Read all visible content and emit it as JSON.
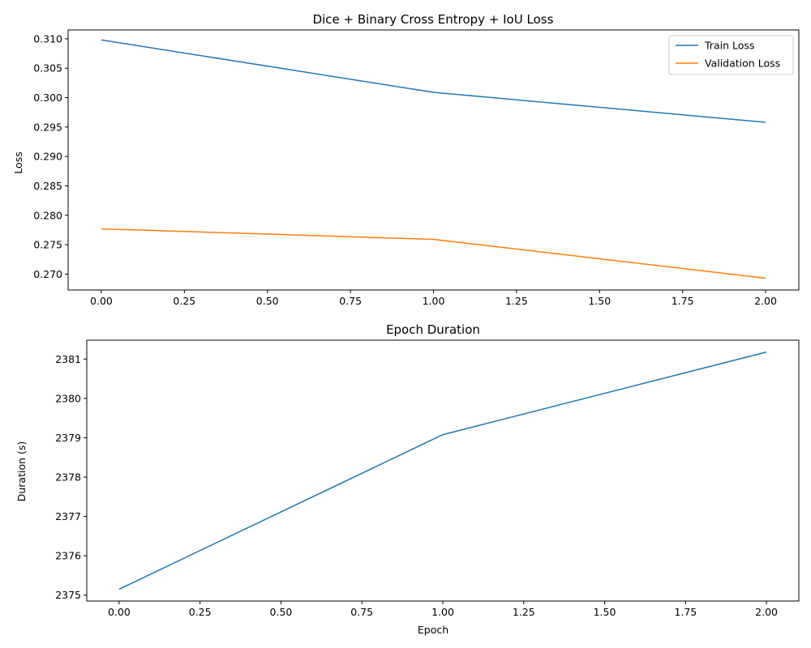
{
  "chart_data": [
    {
      "type": "line",
      "title": "Dice + Binary Cross Entropy + IoU Loss",
      "xlabel": "",
      "ylabel": "Loss",
      "x": [
        0,
        1,
        2
      ],
      "series": [
        {
          "name": "Train Loss",
          "color": "#1f77b4",
          "values": [
            0.3098,
            0.3009,
            0.2958
          ]
        },
        {
          "name": "Validation Loss",
          "color": "#ff7f0e",
          "values": [
            0.2777,
            0.2759,
            0.2693
          ]
        }
      ],
      "xlim": [
        -0.1,
        2.1
      ],
      "ylim": [
        0.2673,
        0.3115
      ],
      "xticks": [
        0.0,
        0.25,
        0.5,
        0.75,
        1.0,
        1.25,
        1.5,
        1.75,
        2.0
      ],
      "xtick_labels": [
        "0.00",
        "0.25",
        "0.50",
        "0.75",
        "1.00",
        "1.25",
        "1.50",
        "1.75",
        "2.00"
      ],
      "yticks": [
        0.27,
        0.275,
        0.28,
        0.285,
        0.29,
        0.295,
        0.3,
        0.305,
        0.31
      ],
      "ytick_labels": [
        "0.270",
        "0.275",
        "0.280",
        "0.285",
        "0.290",
        "0.295",
        "0.300",
        "0.305",
        "0.310"
      ],
      "legend": "top-right",
      "grid": false
    },
    {
      "type": "line",
      "title": "Epoch Duration",
      "xlabel": "Epoch",
      "ylabel": "Duration (s)",
      "x": [
        0,
        1,
        2
      ],
      "series": [
        {
          "color": "#1f77b4",
          "values": [
            2375.15,
            2379.08,
            2381.18
          ]
        }
      ],
      "xlim": [
        -0.1,
        2.1
      ],
      "ylim": [
        2374.85,
        2381.48
      ],
      "xticks": [
        0.0,
        0.25,
        0.5,
        0.75,
        1.0,
        1.25,
        1.5,
        1.75,
        2.0
      ],
      "xtick_labels": [
        "0.00",
        "0.25",
        "0.50",
        "0.75",
        "1.00",
        "1.25",
        "1.50",
        "1.75",
        "2.00"
      ],
      "yticks": [
        2375,
        2376,
        2377,
        2378,
        2379,
        2380,
        2381
      ],
      "ytick_labels": [
        "2375",
        "2376",
        "2377",
        "2378",
        "2379",
        "2380",
        "2381"
      ],
      "grid": false
    }
  ]
}
